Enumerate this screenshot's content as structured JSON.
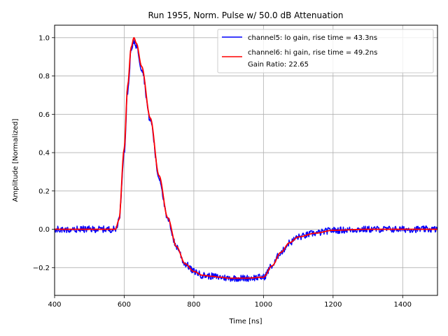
{
  "chart_data": {
    "type": "line",
    "title": "Run 1955, Norm. Pulse w/ 50.0 dB Attenuation",
    "xlabel": "Time [ns]",
    "ylabel": "Amplitude [Normalized]",
    "xlim": [
      400,
      1500
    ],
    "ylim": [
      -0.345,
      1.065
    ],
    "xticks": [
      400,
      600,
      800,
      1000,
      1200,
      1400
    ],
    "xtick_labels": [
      "400",
      "600",
      "800",
      "1000",
      "1200",
      "1400"
    ],
    "yticks": [
      -0.2,
      0.0,
      0.2,
      0.4,
      0.6,
      0.8,
      1.0
    ],
    "ytick_labels": [
      "−0.2",
      "0.0",
      "0.2",
      "0.4",
      "0.6",
      "0.8",
      "1.0"
    ],
    "grid": true,
    "legend_position": "top-right",
    "legend_extra": "Gain Ratio: 22.65",
    "series": [
      {
        "name": "channel5: lo gain, rise time = 43.3ns",
        "color": "#0000ff",
        "noisy": true,
        "x": [
          400,
          500,
          575,
          585,
          600,
          610,
          620,
          628,
          635,
          650,
          675,
          700,
          725,
          750,
          775,
          800,
          825,
          850,
          875,
          900,
          950,
          1000,
          1025,
          1050,
          1075,
          1100,
          1150,
          1200,
          1300,
          1400,
          1500
        ],
        "y": [
          0.0,
          0.0,
          0.0,
          0.05,
          0.4,
          0.72,
          0.93,
          0.98,
          0.96,
          0.84,
          0.57,
          0.27,
          0.05,
          -0.09,
          -0.18,
          -0.22,
          -0.24,
          -0.245,
          -0.25,
          -0.255,
          -0.255,
          -0.25,
          -0.19,
          -0.12,
          -0.07,
          -0.04,
          -0.02,
          -0.005,
          0.0,
          0.0,
          0.0
        ]
      },
      {
        "name": "channel6: hi gain, rise time = 49.2ns",
        "color": "#ff0000",
        "noisy": false,
        "x": [
          400,
          500,
          575,
          585,
          600,
          610,
          620,
          628,
          635,
          650,
          675,
          700,
          725,
          750,
          775,
          800,
          825,
          850,
          875,
          900,
          950,
          1000,
          1025,
          1050,
          1075,
          1100,
          1150,
          1200,
          1300,
          1400,
          1500
        ],
        "y": [
          0.0,
          0.0,
          0.0,
          0.05,
          0.42,
          0.75,
          0.95,
          1.0,
          0.97,
          0.85,
          0.58,
          0.28,
          0.06,
          -0.09,
          -0.18,
          -0.22,
          -0.24,
          -0.245,
          -0.25,
          -0.255,
          -0.255,
          -0.25,
          -0.19,
          -0.12,
          -0.07,
          -0.04,
          -0.02,
          -0.005,
          0.0,
          0.0,
          0.0
        ]
      }
    ]
  }
}
